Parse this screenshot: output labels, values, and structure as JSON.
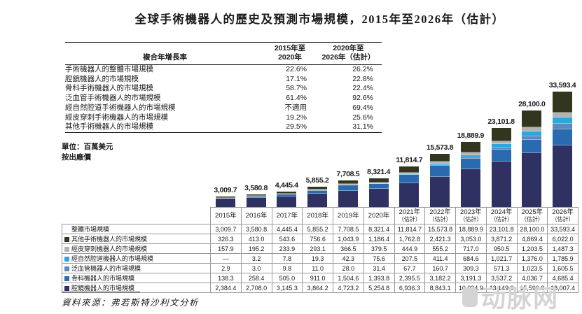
{
  "title": "全球手術機器人的歷史及預測市場規模，2015年至2026年（估計）",
  "cagr_table": {
    "header_label": "複合年增長率",
    "period1": "2015年至\n2020年",
    "period2": "2020年至\n2026年（估計）",
    "rows": [
      {
        "label": "手術機器人的整體市場規模",
        "p1": "22.6%",
        "p2": "26.2%"
      },
      {
        "label": "腔鏡機器人的市場規模",
        "p1": "17.1%",
        "p2": "22.8%"
      },
      {
        "label": "骨科手術機器人的市場規模",
        "p1": "58.7%",
        "p2": "22.4%"
      },
      {
        "label": "泛血管手術機器人的市場規模",
        "p1": "61.4%",
        "p2": "92.6%"
      },
      {
        "label": "經自然腔道手術機器人的市場規模",
        "p1": "不適用",
        "p2": "69.4%"
      },
      {
        "label": "經皮穿刺手術機器人的市場規模",
        "p1": "19.2%",
        "p2": "25.6%"
      },
      {
        "label": "其他手術機器人的市場規模",
        "p1": "29.5%",
        "p2": "31.1%"
      }
    ]
  },
  "unit_note": {
    "line1": "單位：百萬美元",
    "line2": "按出廠價"
  },
  "chart_data": {
    "type": "bar",
    "stacked": true,
    "unit": "百萬美元",
    "ylim": [
      0,
      33593.4
    ],
    "legend_position": "table-left",
    "categories": [
      "2015年",
      "2016年",
      "2017年",
      "2018年",
      "2019年",
      "2020年",
      "2021年（估計）",
      "2022年（估計）",
      "2023年（估計）",
      "2024年（估計）",
      "2025年（估計）",
      "2026年（估計）"
    ],
    "totals": [
      3009.7,
      3580.8,
      4445.4,
      5855.2,
      7708.5,
      8321.4,
      11814.7,
      15573.8,
      18889.9,
      23101.8,
      28100.0,
      33593.4
    ],
    "total_labels": [
      "3,009.7",
      "3,580.8",
      "4,445.4",
      "5,855.2",
      "7,708.5",
      "8,321.4",
      "11,814.7",
      "15,573.8",
      "18,889.9",
      "23,101.8",
      "28,100.0",
      "33,593.4"
    ],
    "series": [
      {
        "name": "腔鏡機器人的市場規模",
        "color": "#2E3161",
        "values": [
          2384.4,
          2708.0,
          3145.3,
          3864.2,
          4723.2,
          5254.8,
          6936.3,
          8843.1,
          10934.9,
          13149.9,
          15590.8,
          18007.4
        ]
      },
      {
        "name": "骨科機器人的市場規模",
        "color": "#2A6BAF",
        "values": [
          138.3,
          258.4,
          505.0,
          911.0,
          1504.6,
          1393.8,
          2395.5,
          3182.2,
          3191.3,
          3537.2,
          4036.7,
          4685.4
        ]
      },
      {
        "name": "泛血管機器人的市場規模",
        "color": "#5B88BF",
        "values": [
          2.9,
          3.0,
          9.8,
          11.0,
          28.0,
          31.4,
          67.7,
          160.7,
          309.3,
          571.3,
          1023.5,
          1605.5
        ]
      },
      {
        "name": "經自然腔道機器人的市場規模",
        "color": "#2BA7DB",
        "values": [
          0,
          3.2,
          7.8,
          19.3,
          42.3,
          75.6,
          207.5,
          411.4,
          684.6,
          1021.7,
          1376.0,
          1785.9
        ]
      },
      {
        "name": "經皮穿刺機器人的市場規模",
        "color": "#B3B3B3",
        "values": [
          157.9,
          195.2,
          233.9,
          293.1,
          366.5,
          379.5,
          444.9,
          555.2,
          717.0,
          950.5,
          1203.5,
          1487.3
        ]
      },
      {
        "name": "其他手術機器人的市場規模",
        "color": "#33361F",
        "values": [
          326.3,
          413.0,
          543.6,
          756.6,
          1043.9,
          1186.4,
          1762.8,
          2421.3,
          3053.0,
          3871.2,
          4869.4,
          6022.0
        ]
      }
    ]
  },
  "table": {
    "year_headers": [
      {
        "year": "2015年",
        "note": ""
      },
      {
        "year": "2016年",
        "note": ""
      },
      {
        "year": "2017年",
        "note": ""
      },
      {
        "year": "2018年",
        "note": ""
      },
      {
        "year": "2019年",
        "note": ""
      },
      {
        "year": "2020年",
        "note": ""
      },
      {
        "year": "2021年",
        "note": "（估計）"
      },
      {
        "year": "2022年",
        "note": "（估計）"
      },
      {
        "year": "2023年",
        "note": "（估計）"
      },
      {
        "year": "2024年",
        "note": "（估計）"
      },
      {
        "year": "2025年",
        "note": "（估計）"
      },
      {
        "year": "2026年",
        "note": "（估計）"
      }
    ],
    "rows": [
      {
        "label": "整體市場規模",
        "swatch": null,
        "values": [
          "3,009.7",
          "3,580.8",
          "4,445.4",
          "5,855.2",
          "7,708.5",
          "8,321.4",
          "11,814.7",
          "15,573.8",
          "18,889.9",
          "23,101.8",
          "28,100.0",
          "33,593.4"
        ]
      },
      {
        "label": "其他手術機器人的市場規模",
        "swatch": "#33361F",
        "values": [
          "326.3",
          "413.0",
          "543.6",
          "756.6",
          "1,043.9",
          "1,186.4",
          "1,762.8",
          "2,421.3",
          "3,053.0",
          "3,871.2",
          "4,869.4",
          "6,022.0"
        ]
      },
      {
        "label": "經皮穿刺機器人的市場規模",
        "swatch": "#B3B3B3",
        "values": [
          "157.9",
          "195.2",
          "233.9",
          "293.1",
          "366.5",
          "379.5",
          "444.9",
          "555.2",
          "717.0",
          "950.5",
          "1,203.5",
          "1,487.3"
        ]
      },
      {
        "label": "經自然腔道機器人的市場規模",
        "swatch": "#2BA7DB",
        "values": [
          "—",
          "3.2",
          "7.8",
          "19.3",
          "42.3",
          "75.6",
          "207.5",
          "411.4",
          "684.6",
          "1,021.7",
          "1,376.0",
          "1,785.9"
        ]
      },
      {
        "label": "泛血管機器人的市場規模",
        "swatch": "#5B88BF",
        "values": [
          "2.9",
          "3.0",
          "9.8",
          "11.0",
          "28.0",
          "31.4",
          "67.7",
          "160.7",
          "309.3",
          "571.3",
          "1,023.5",
          "1,605.5"
        ]
      },
      {
        "label": "骨科機器人的市場規模",
        "swatch": "#2A6BAF",
        "values": [
          "138.3",
          "258.4",
          "505.0",
          "911.0",
          "1,504.6",
          "1,393.8",
          "2,395.5",
          "3,182.2",
          "3,191.3",
          "3,537.2",
          "4,036.7",
          "4,685.4"
        ]
      },
      {
        "label": "腔鏡機器人的市場規模",
        "swatch": "#2E3161",
        "values": [
          "2,384.4",
          "2,708.0",
          "3,145.3",
          "3,864.2",
          "4,723.2",
          "5,254.8",
          "6,936.3",
          "8,843.1",
          "10,934.9",
          "13,149.9",
          "15,590.8",
          "18,007.4"
        ]
      }
    ]
  },
  "source": "資料來源：弗若斯特沙利文分析",
  "watermark": "动脉网"
}
